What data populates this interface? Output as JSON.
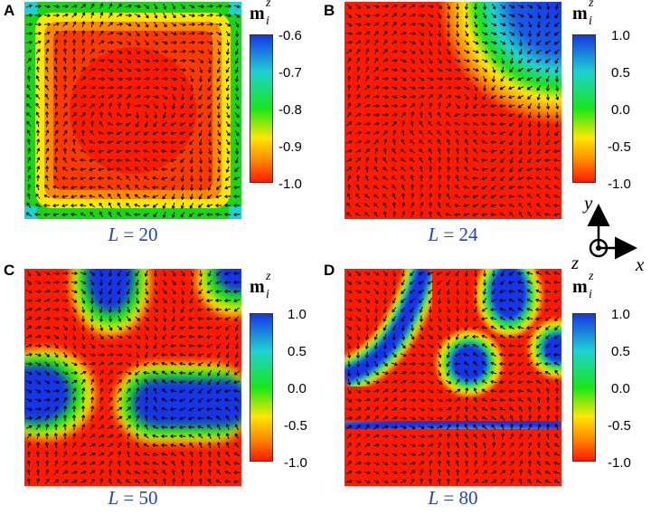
{
  "panels": [
    {
      "letter": "A",
      "size_label_var": "L",
      "size_label_value": " = 20",
      "colorbar_ticks": [
        "-0.6",
        "-0.7",
        "-0.8",
        "-0.9",
        "-1.0"
      ]
    },
    {
      "letter": "B",
      "size_label_var": "L",
      "size_label_value": " = 24",
      "colorbar_ticks": [
        "1.0",
        "0.5",
        "0.0",
        "-0.5",
        "-1.0"
      ]
    },
    {
      "letter": "C",
      "size_label_var": "L",
      "size_label_value": " = 50",
      "colorbar_ticks": [
        "1.0",
        "0.5",
        "0.0",
        "-0.5",
        "-1.0"
      ]
    },
    {
      "letter": "D",
      "size_label_var": "L",
      "size_label_value": " = 80",
      "colorbar_ticks": [
        "1.0",
        "0.5",
        "0.0",
        "-0.5",
        "-1.0"
      ]
    }
  ],
  "colorbar_title": {
    "base": "m",
    "sup": "z",
    "sub": "i"
  },
  "axes": {
    "y": "y",
    "x": "x",
    "z": "z"
  },
  "colors": {
    "red": "#ff1a00",
    "orange": "#ff8a00",
    "yellow": "#ffe600",
    "green": "#19e619",
    "cyan": "#1ed2d2",
    "blue": "#1436e6",
    "label_blue": "#1f3fd6"
  }
}
